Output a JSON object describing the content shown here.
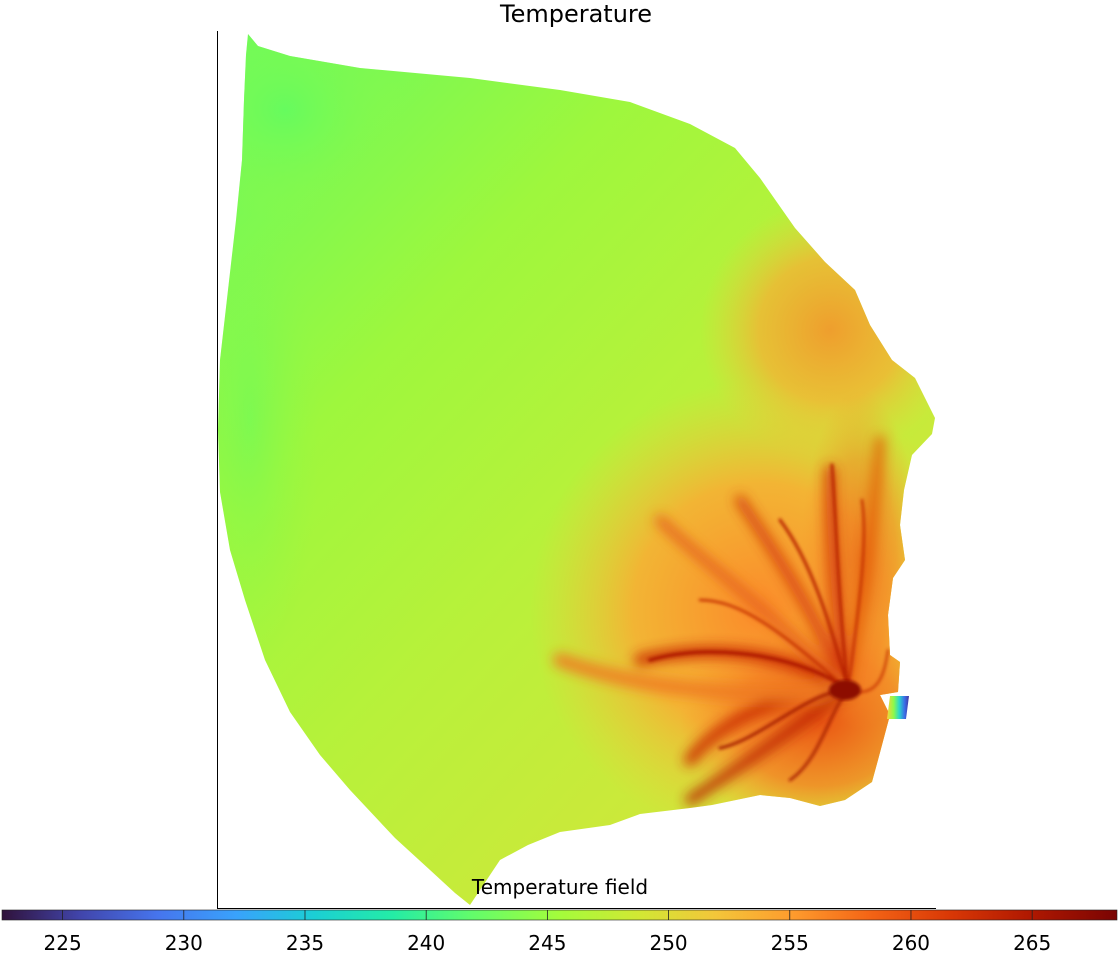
{
  "chart_data": {
    "type": "heatmap",
    "title": "Temperature",
    "field": "Temperature",
    "grid": false,
    "legend_placement": "bottom",
    "colormap": "turbo",
    "colorbar": {
      "label": "Temperature field",
      "range": [
        222.5,
        268.5
      ],
      "ticks": [
        225,
        230,
        235,
        240,
        245,
        250,
        255,
        260,
        265
      ],
      "tick_labels": [
        "225",
        "230",
        "235",
        "240",
        "245",
        "250",
        "255",
        "260",
        "265"
      ]
    },
    "field_summary": {
      "min": 240,
      "max": 268,
      "hot_region": "lower-right",
      "cool_region": "upper-left"
    }
  }
}
